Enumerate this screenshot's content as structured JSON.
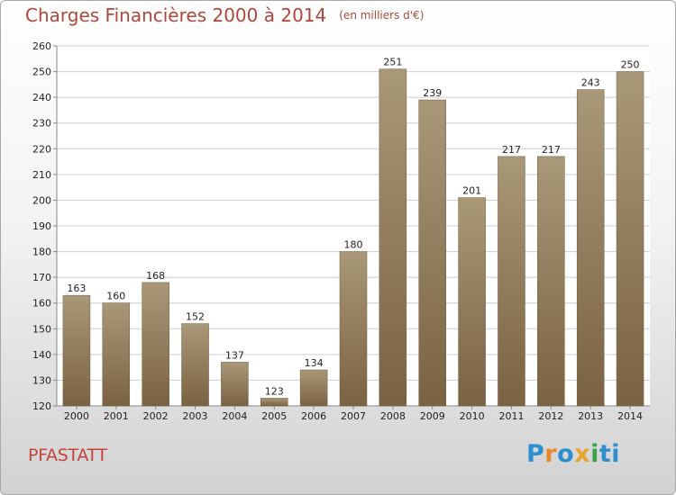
{
  "header": {
    "title": "Charges Financières 2000 à 2014",
    "subtitle": "(en milliers d'€)"
  },
  "commune": "PFASTATT",
  "logo": [
    "P",
    "r",
    "o",
    "x",
    "i",
    "ti"
  ],
  "colors": {
    "title": "#b0463a",
    "bar_top": "#a99878",
    "bar_bottom": "#7a6242",
    "grid": "#cfcfcf",
    "plot_bg": "#ffffff"
  },
  "chart_data": {
    "type": "bar",
    "categories": [
      "2000",
      "2001",
      "2002",
      "2003",
      "2004",
      "2005",
      "2006",
      "2007",
      "2008",
      "2009",
      "2010",
      "2011",
      "2012",
      "2013",
      "2014"
    ],
    "values": [
      163,
      160,
      168,
      152,
      137,
      123,
      134,
      180,
      251,
      239,
      201,
      217,
      217,
      243,
      250
    ],
    "ylim": [
      120,
      260
    ],
    "yticks": [
      120,
      130,
      140,
      150,
      160,
      170,
      180,
      190,
      200,
      210,
      220,
      230,
      240,
      250,
      260
    ],
    "grid": true,
    "xlabel": "",
    "ylabel": ""
  }
}
